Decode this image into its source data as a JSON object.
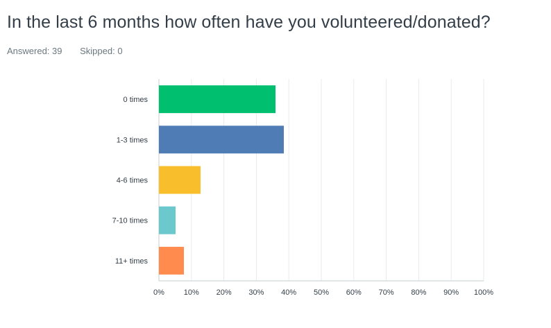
{
  "question": {
    "title": "In the last 6 months how often have you volunteered/donated?",
    "answered_label": "Answered: 39",
    "skipped_label": "Skipped: 0"
  },
  "chart_data": {
    "type": "bar",
    "orientation": "horizontal",
    "title": "In the last 6 months how often have you volunteered/donated?",
    "categories": [
      "0 times",
      "1-3 times",
      "4-6 times",
      "7-10 times",
      "11+ times"
    ],
    "values": [
      35.9,
      38.46,
      12.82,
      5.13,
      7.69
    ],
    "colors": [
      "#00bf6f",
      "#507cb6",
      "#f9be2b",
      "#6bc8cd",
      "#ff8b4f"
    ],
    "xlim": [
      0,
      100
    ],
    "xticks": [
      "0%",
      "10%",
      "20%",
      "30%",
      "40%",
      "50%",
      "60%",
      "70%",
      "80%",
      "90%",
      "100%"
    ],
    "xlabel": "",
    "ylabel": "",
    "grid": true
  }
}
